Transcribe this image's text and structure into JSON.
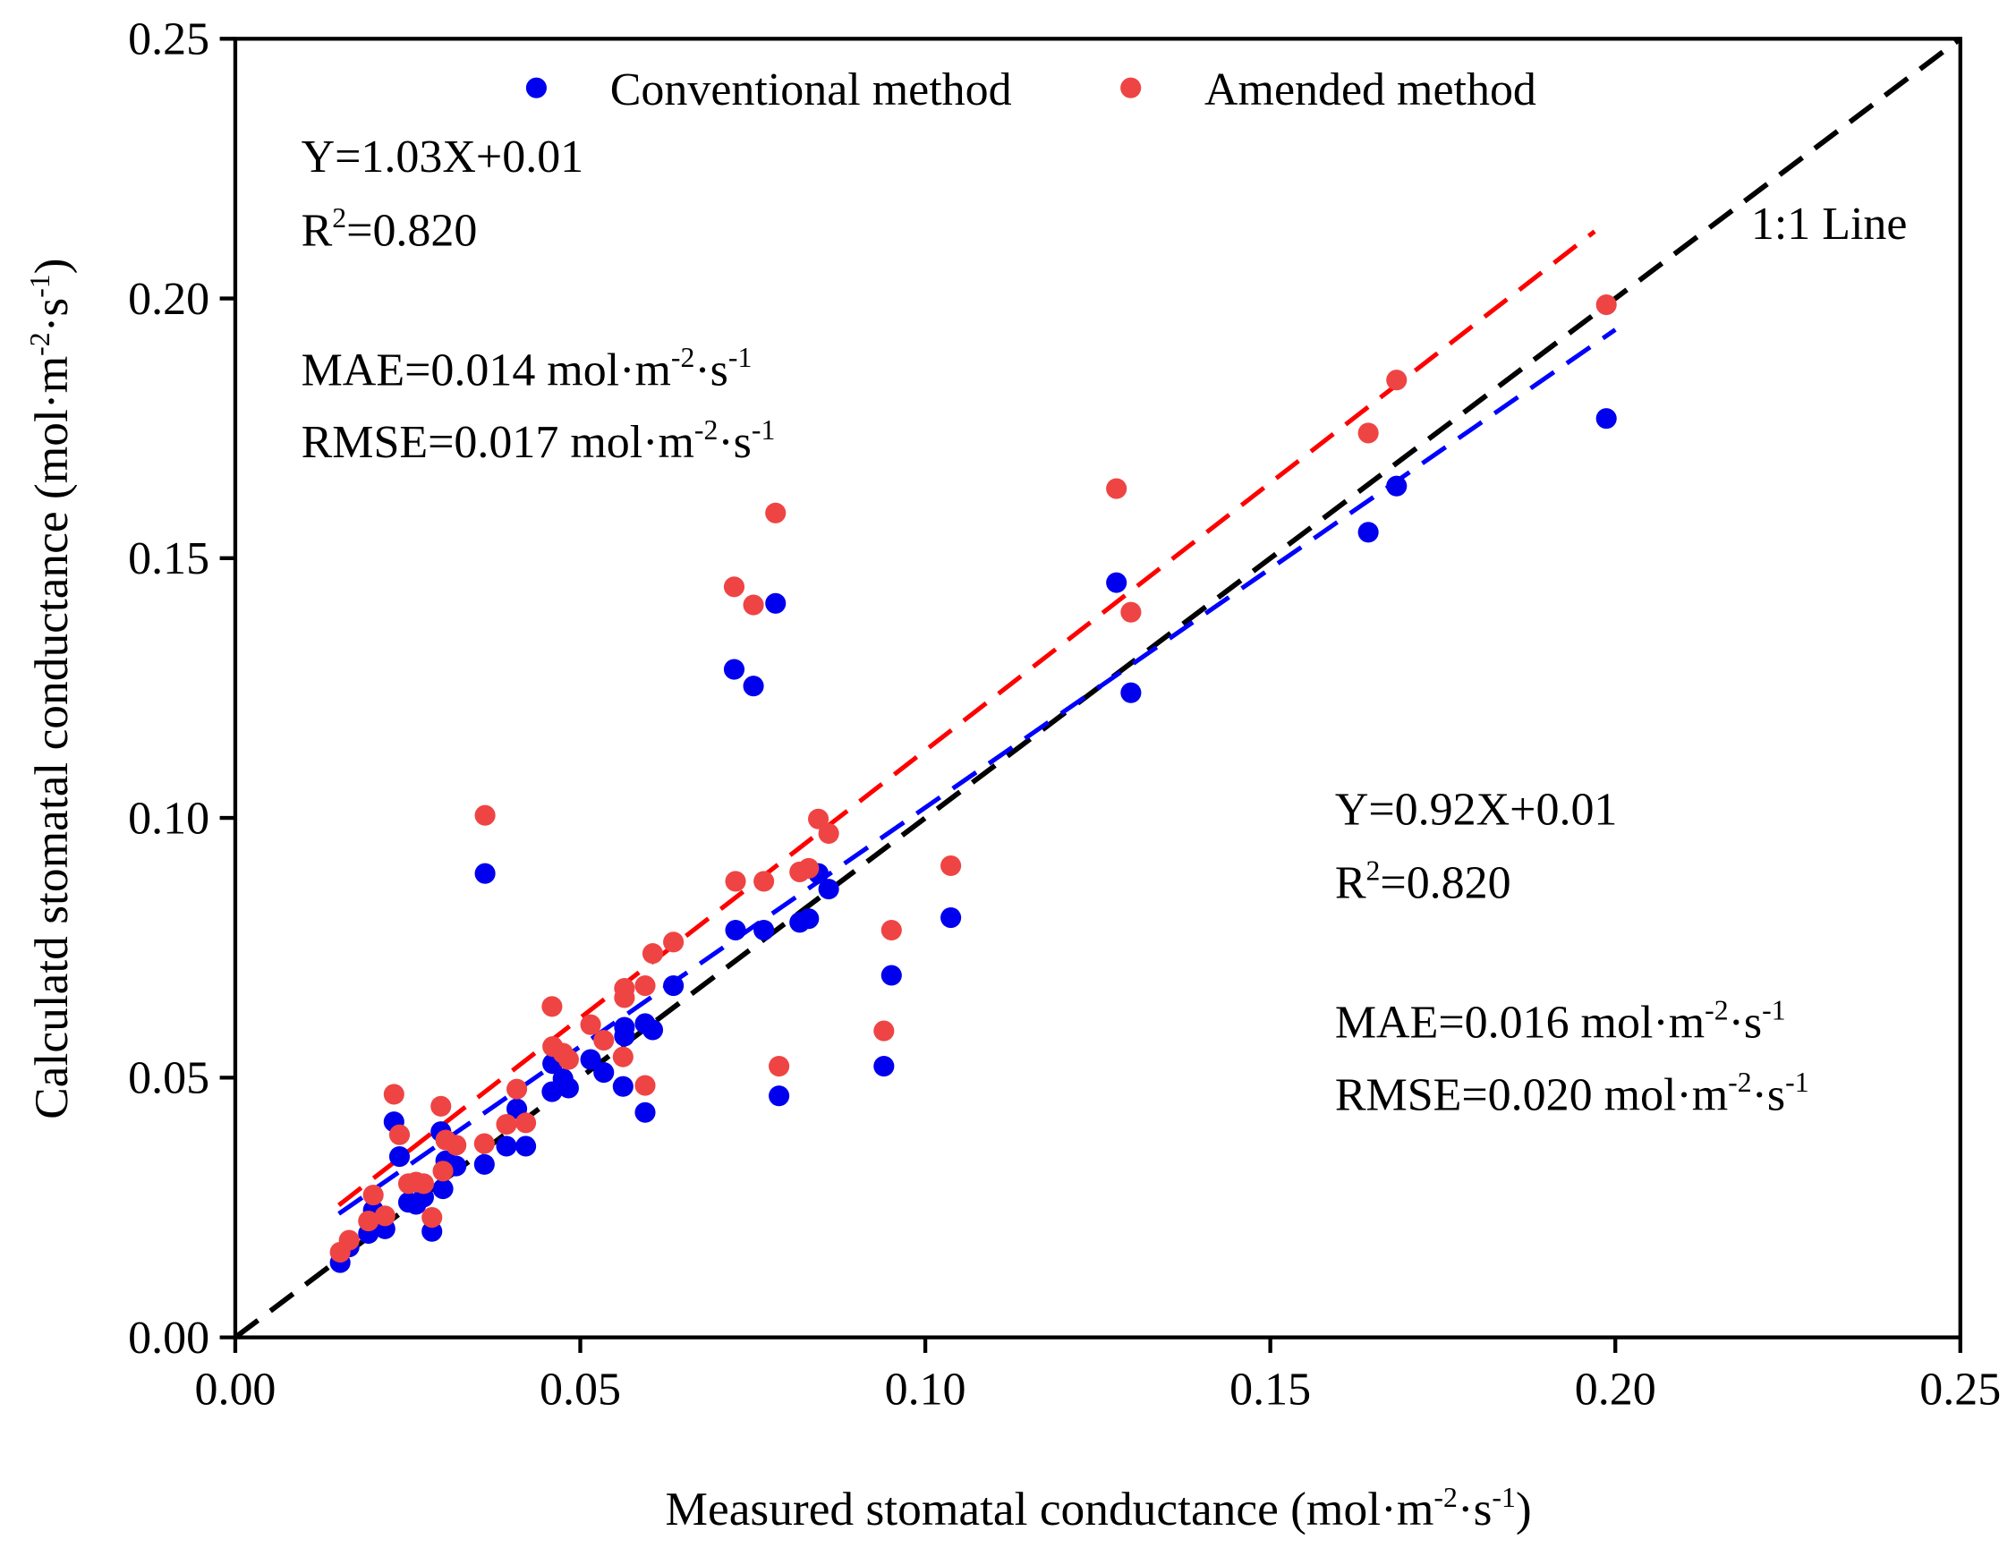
{
  "chart_data": {
    "type": "scatter",
    "title": "",
    "xlabel": {
      "main": "Measured stomatal conductance (mol·m",
      "sup1": "-2",
      "mid": "·s",
      "sup2": "-1",
      "end": ")"
    },
    "ylabel": {
      "main": "Calculatd stomatal conductance (mol·m",
      "sup1": "-2",
      "mid": "·s",
      "sup2": "-1",
      "end": ")"
    },
    "xlim": [
      0,
      0.25
    ],
    "ylim": [
      0,
      0.25
    ],
    "xticks": [
      "0.00",
      "0.05",
      "0.10",
      "0.15",
      "0.20",
      "0.25"
    ],
    "yticks": [
      "0.00",
      "0.05",
      "0.10",
      "0.15",
      "0.20",
      "0.25"
    ],
    "tick_values": [
      0,
      0.05,
      0.1,
      0.15,
      0.2,
      0.25
    ],
    "grid": false,
    "legend_position": "top-center",
    "colors": {
      "conventional": "#0000ee",
      "amended": "#ef4444",
      "conventional_fit": "#0000ff",
      "amended_fit": "#ff0000",
      "one_to_one": "#000000"
    },
    "x": [
      0.0152,
      0.0165,
      0.0193,
      0.02,
      0.0217,
      0.023,
      0.0238,
      0.0251,
      0.0262,
      0.0273,
      0.0285,
      0.0298,
      0.0301,
      0.0305,
      0.032,
      0.0361,
      0.0362,
      0.0393,
      0.0408,
      0.0421,
      0.0459,
      0.046,
      0.0475,
      0.0483,
      0.0515,
      0.0534,
      0.0562,
      0.0564,
      0.0564,
      0.0594,
      0.0594,
      0.0605,
      0.0635,
      0.0723,
      0.0725,
      0.0751,
      0.0766,
      0.0783,
      0.0788,
      0.0818,
      0.0831,
      0.0845,
      0.086,
      0.094,
      0.0951,
      0.1037,
      0.1277,
      0.1298,
      0.1642,
      0.1683,
      0.1987
    ],
    "series": [
      {
        "name": "Conventional method",
        "values": [
          0.0144,
          0.0174,
          0.02,
          0.0245,
          0.0209,
          0.0415,
          0.0348,
          0.026,
          0.0256,
          0.027,
          0.0204,
          0.0396,
          0.0286,
          0.034,
          0.033,
          0.0333,
          0.0893,
          0.0368,
          0.044,
          0.0368,
          0.0473,
          0.0527,
          0.0498,
          0.048,
          0.0535,
          0.051,
          0.0483,
          0.0597,
          0.058,
          0.0433,
          0.0604,
          0.0592,
          0.0677,
          0.1286,
          0.0784,
          0.1254,
          0.0784,
          0.1413,
          0.0465,
          0.0799,
          0.0806,
          0.0893,
          0.0863,
          0.0522,
          0.0697,
          0.0808,
          0.1453,
          0.1241,
          0.155,
          0.1639,
          0.1769
        ],
        "fit": {
          "label": "Y=0.92X+0.01",
          "slope": 0.92,
          "intercept": 0.01,
          "x_range": [
            0.015,
            0.2
          ],
          "r2_label": "R",
          "r2_sup": "2",
          "r2_value": "=0.820",
          "mae_label": "MAE=0.016 mol·m",
          "rmse_label": "RMSE=0.020 mol·m",
          "unit_sup1": "-2",
          "unit_mid": "·s",
          "unit_sup2": "-1"
        }
      },
      {
        "name": "Amended method",
        "values": [
          0.0164,
          0.0187,
          0.0224,
          0.0274,
          0.0234,
          0.0468,
          0.039,
          0.0296,
          0.0299,
          0.0296,
          0.0231,
          0.0445,
          0.032,
          0.038,
          0.037,
          0.0373,
          0.1005,
          0.041,
          0.0478,
          0.0413,
          0.0637,
          0.056,
          0.0547,
          0.0535,
          0.0602,
          0.0572,
          0.054,
          0.0672,
          0.0654,
          0.0485,
          0.0677,
          0.0739,
          0.0761,
          0.1445,
          0.0878,
          0.141,
          0.0878,
          0.1587,
          0.0522,
          0.0896,
          0.0903,
          0.0998,
          0.097,
          0.059,
          0.0784,
          0.0908,
          0.1634,
          0.1396,
          0.1741,
          0.1843,
          0.1988
        ],
        "fit": {
          "label": "Y=1.03X+0.01",
          "slope": 1.03,
          "intercept": 0.01,
          "x_range": [
            0.015,
            0.197
          ],
          "r2_label": "R",
          "r2_sup": "2",
          "r2_value": "=0.820",
          "mae_label": "MAE=0.014 mol·m",
          "rmse_label": "RMSE=0.017 mol·m",
          "unit_sup1": "-2",
          "unit_mid": "·s",
          "unit_sup2": "-1"
        }
      }
    ],
    "annotations": {
      "one_to_one": "1:1 Line"
    }
  }
}
